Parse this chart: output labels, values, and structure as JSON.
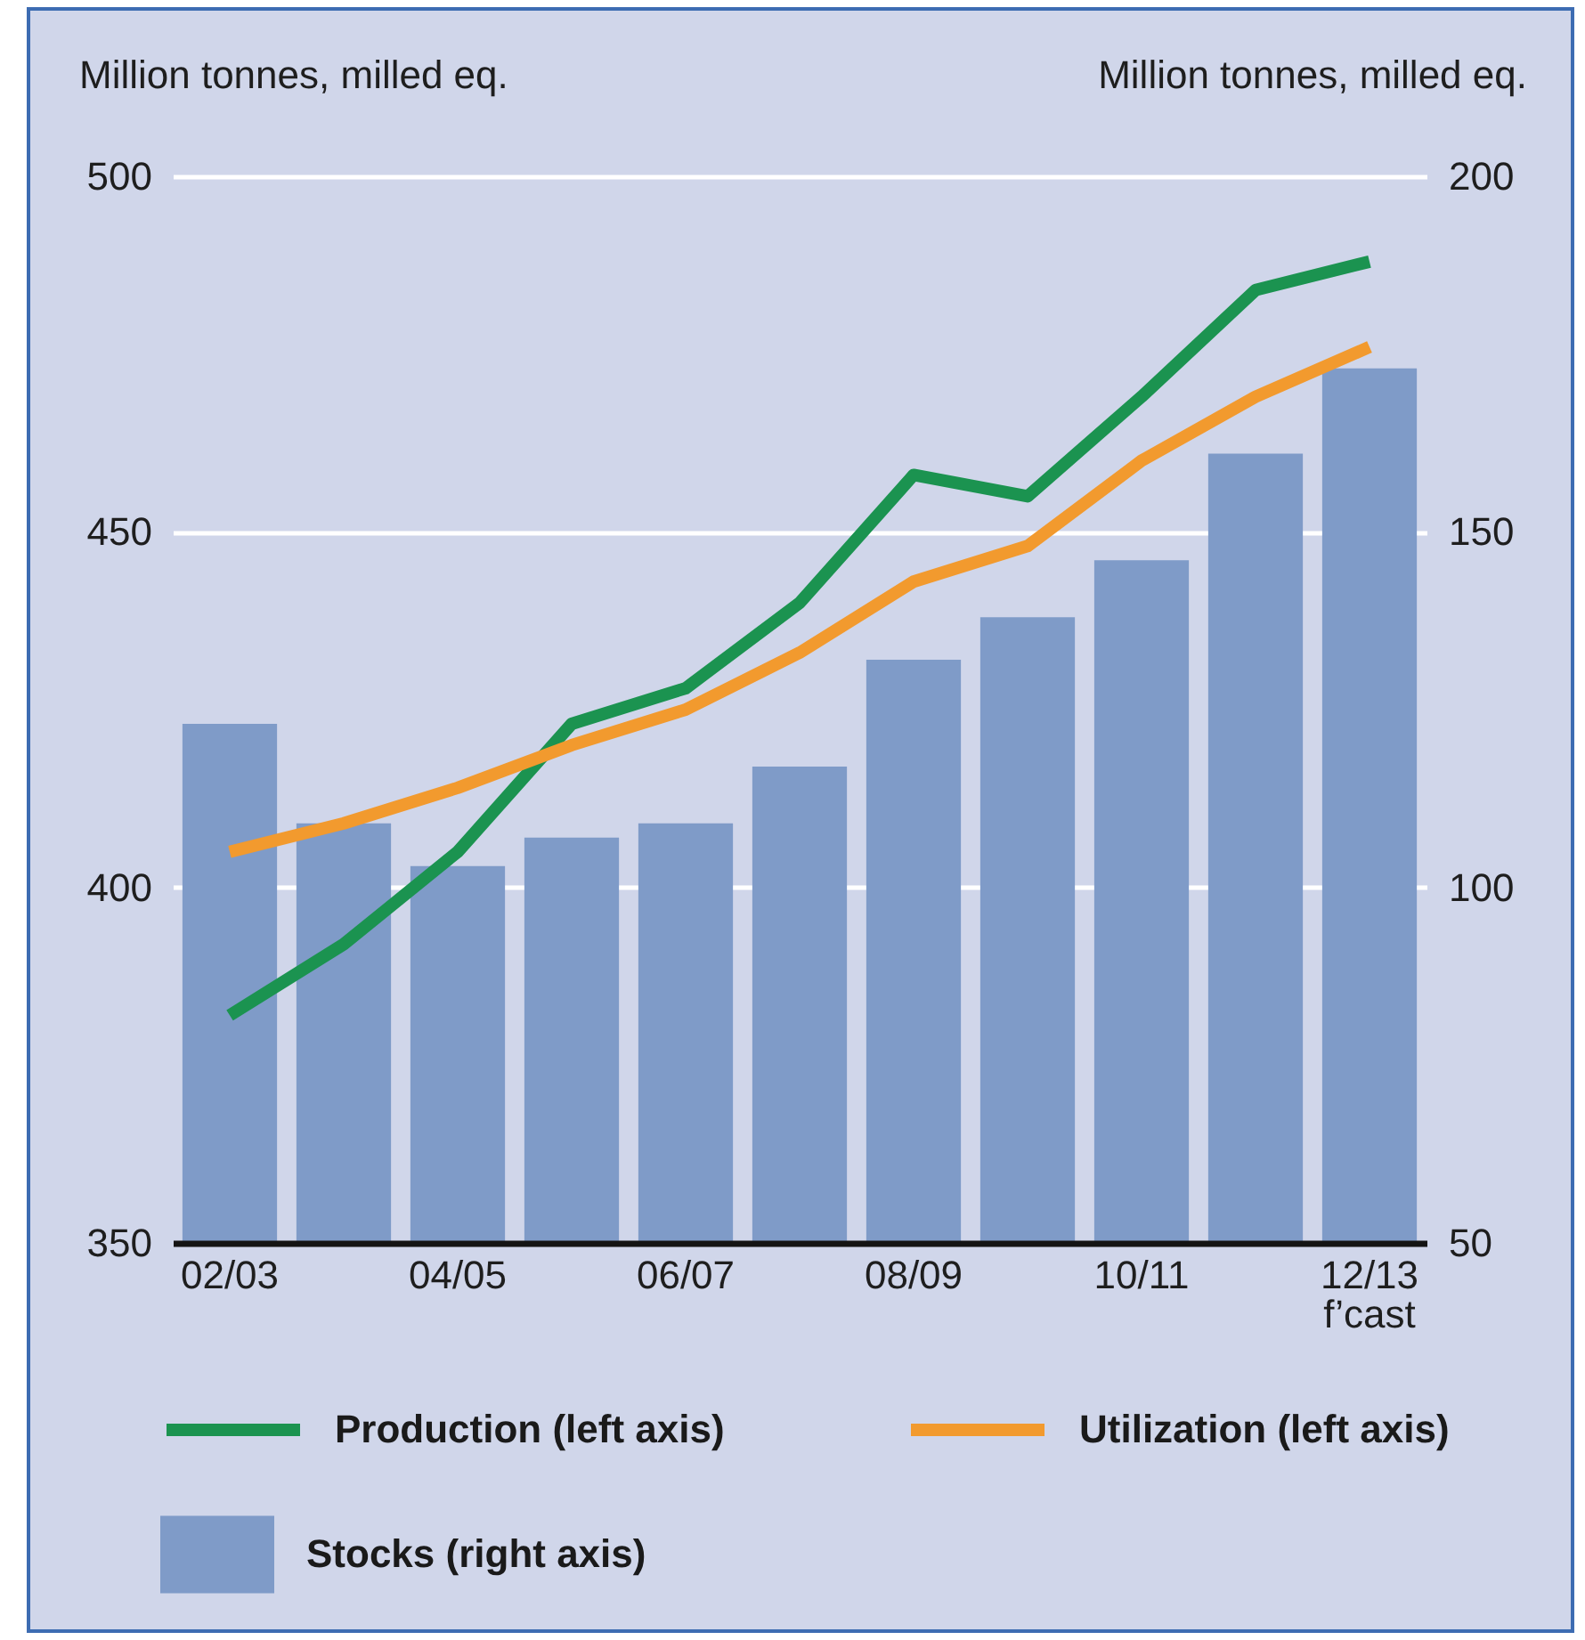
{
  "chart_data": {
    "type": "line",
    "ylabel": "Million tonnes, milled eq.",
    "y2label": "Million tonnes, milled eq.",
    "categories": [
      "02/03",
      null,
      "04/05",
      null,
      "06/07",
      null,
      "08/09",
      null,
      "10/11",
      null,
      "12/13\nf’cast"
    ],
    "series": [
      {
        "name": "Stocks (right axis)",
        "type": "bar",
        "axis": "y2",
        "color": "#7f9bc8",
        "values": [
          123,
          109,
          103,
          107,
          109,
          117,
          132,
          138,
          146,
          161,
          173
        ]
      },
      {
        "name": "Production (left axis)",
        "color": "#1b9350",
        "values": [
          382,
          392,
          405,
          423,
          428,
          440,
          458,
          455,
          469,
          484,
          488
        ]
      },
      {
        "name": "Utilization (left axis)",
        "color": "#f29a2e",
        "values": [
          405,
          409,
          414,
          420,
          425,
          433,
          443,
          448,
          460,
          469,
          476
        ]
      }
    ],
    "ylim": [
      350,
      500
    ],
    "yticks": [
      350,
      400,
      450,
      500
    ],
    "y2lim": [
      50,
      200
    ],
    "y2ticks": [
      50,
      100,
      150,
      200
    ],
    "grid": "y",
    "legend": "bottom"
  }
}
